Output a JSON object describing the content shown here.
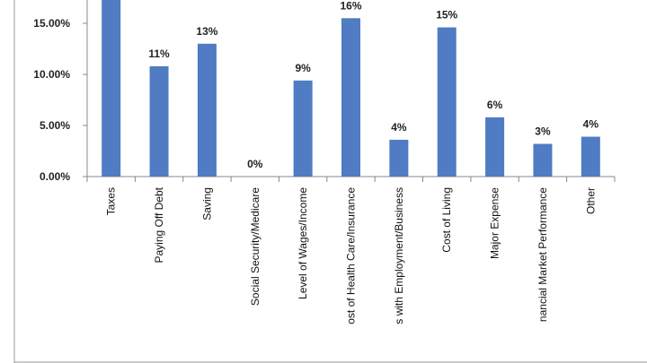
{
  "chart_data": {
    "type": "bar",
    "categories": [
      "Taxes",
      "Paying Off Debt",
      "Saving",
      "Social Security/Medicare",
      "Level of Wages/Income",
      "Cost of Health Care/Insurance",
      "Issues with Employment/Business",
      "Cost of Living",
      "Major Expense",
      "Financial Market Performance",
      "Other"
    ],
    "visible_category_text": [
      "Taxes",
      "Paying Off Debt",
      "Saving",
      "Social Security/Medicare",
      "Level of Wages/Income",
      "ost of Health Care/Insurance",
      "s with Employment/Business",
      "Cost of Living",
      "Major Expense",
      "nancial Market Performance",
      "Other"
    ],
    "values": [
      17.5,
      10.8,
      13.0,
      0.0,
      9.4,
      15.5,
      3.6,
      14.6,
      5.8,
      3.2,
      3.9
    ],
    "data_labels": [
      "",
      "11%",
      "13%",
      "0%",
      "9%",
      "16%",
      "4%",
      "15%",
      "6%",
      "3%",
      "4%"
    ],
    "y_ticks": [
      0,
      5,
      10,
      15
    ],
    "y_tick_labels": [
      "0.00%",
      "5.00%",
      "10.00%",
      "15.00%"
    ],
    "ylim": [
      0,
      18.5
    ],
    "grid": false,
    "bar_color": "#4f7cc2",
    "axis_color": "#888888",
    "border_color": "#9a9a9a"
  }
}
